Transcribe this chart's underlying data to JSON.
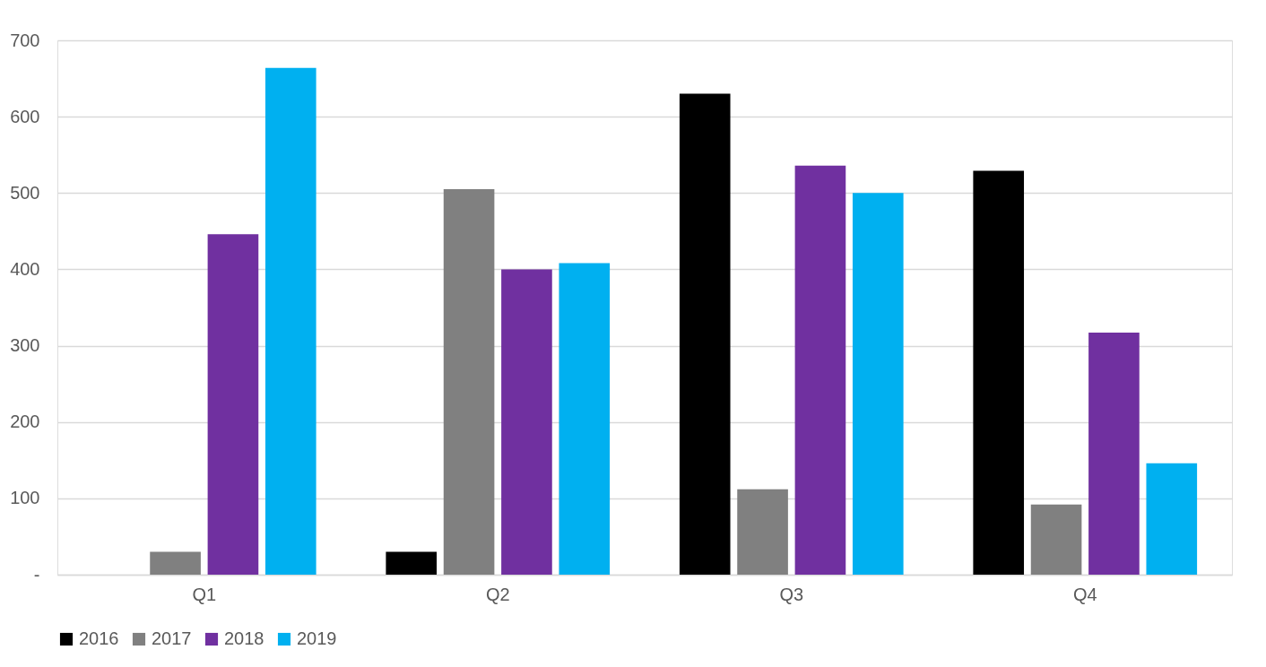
{
  "chart_data": {
    "type": "bar",
    "categories": [
      "Q1",
      "Q2",
      "Q3",
      "Q4"
    ],
    "series": [
      {
        "name": "2016",
        "color": "#000000",
        "values": [
          null,
          30,
          630,
          529
        ]
      },
      {
        "name": "2017",
        "color": "#808080",
        "values": [
          30,
          505,
          112,
          92
        ]
      },
      {
        "name": "2018",
        "color": "#7030a0",
        "values": [
          446,
          400,
          536,
          317
        ]
      },
      {
        "name": "2019",
        "color": "#00b0f0",
        "values": [
          664,
          408,
          500,
          146
        ]
      }
    ],
    "ylim": [
      0,
      700
    ],
    "yticks": [
      {
        "value": 0,
        "label": "-"
      },
      100,
      200,
      300,
      400,
      500,
      600,
      700
    ],
    "grid": "y",
    "legend": "bottom"
  }
}
